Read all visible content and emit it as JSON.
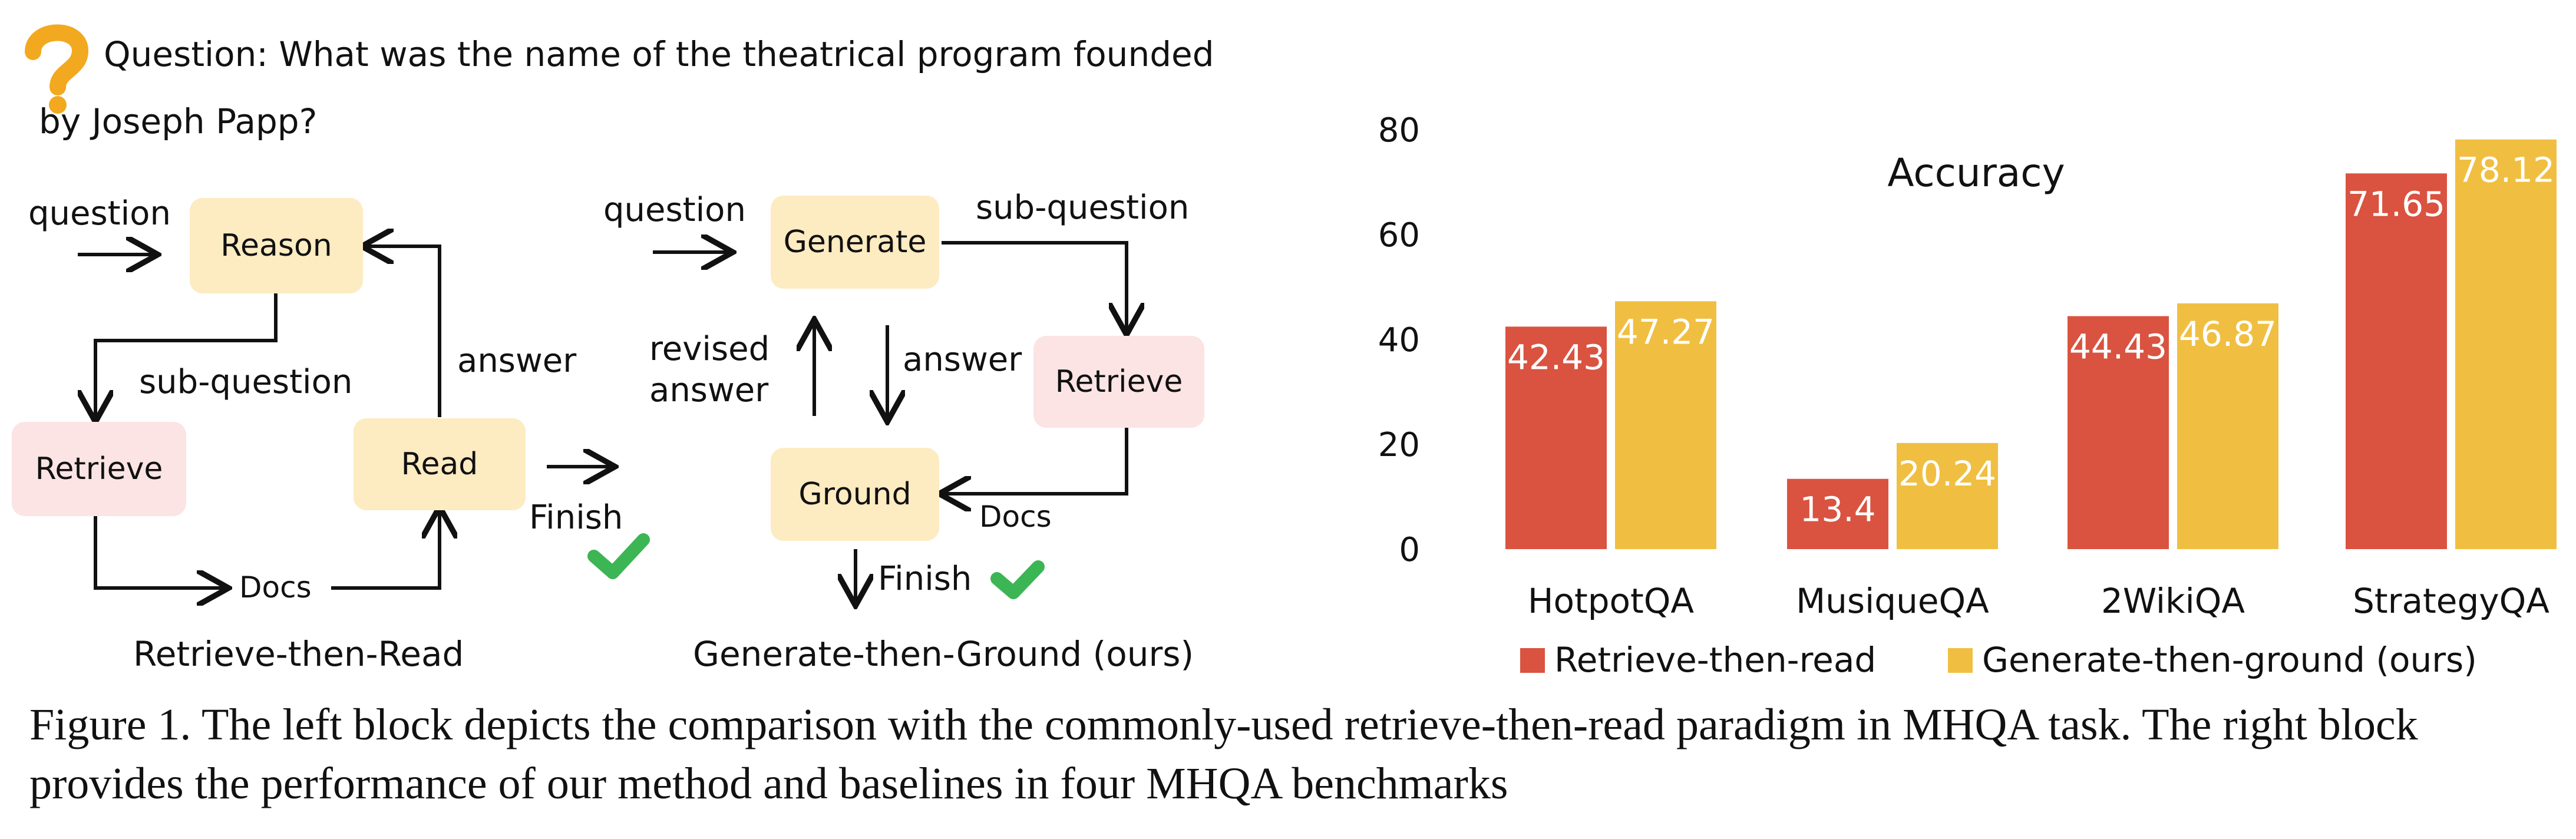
{
  "question": {
    "icon": "question-mark-icon",
    "line1": "Question: What was the name of the theatrical program founded",
    "line2": "by Joseph Papp?"
  },
  "left_diagram": {
    "question_label": "question",
    "reason": "Reason",
    "sub_question": "sub-question",
    "answer": "answer",
    "retrieve": "Retrieve",
    "read": "Read",
    "docs": "Docs",
    "finish": "Finish",
    "title": "Retrieve-then-Read"
  },
  "middle_diagram": {
    "question_label": "question",
    "generate": "Generate",
    "sub_question": "sub-question",
    "revised_answer_1": "revised",
    "revised_answer_2": "answer",
    "answer": "answer",
    "retrieve": "Retrieve",
    "ground": "Ground",
    "docs": "Docs",
    "finish": "Finish",
    "title": "Generate-then-Ground (ours)"
  },
  "colors": {
    "retrieve_then_read": "#d95340",
    "generate_then_ground": "#f0bf42",
    "box_yellow": "#fdebc2",
    "box_pink": "#fce4e4",
    "check_green": "#3cb554"
  },
  "chart_data": {
    "type": "bar",
    "title": "Accuracy",
    "categories": [
      "HotpotQA",
      "MusiqueQA",
      "2WikiQA",
      "StrategyQA"
    ],
    "series": [
      {
        "name": "Retrieve-then-read",
        "values": [
          42.43,
          13.4,
          44.43,
          71.65
        ]
      },
      {
        "name": "Generate-then-ground (ours)",
        "values": [
          47.27,
          20.24,
          46.87,
          78.12
        ]
      }
    ],
    "value_labels": [
      [
        "42.43",
        "13.4",
        "44.43",
        "71.65"
      ],
      [
        "47.27",
        "20.24",
        "46.87",
        "78.12"
      ]
    ],
    "yticks": [
      "0",
      "20",
      "40",
      "60",
      "80"
    ],
    "ylim": [
      0,
      84
    ],
    "xlabel": "",
    "ylabel": "",
    "grid": false,
    "legend": "bottom"
  },
  "caption": "Figure 1. The left block depicts the comparison with the commonly-used retrieve-then-read paradigm in MHQA task. The right block provides the performance of our method and baselines in four MHQA benchmarks"
}
